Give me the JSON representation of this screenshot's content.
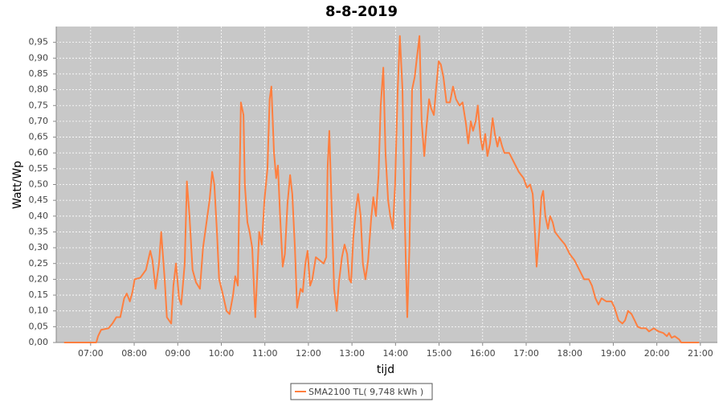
{
  "chart_data": {
    "type": "line",
    "title": "8-8-2019",
    "x_label": "tijd",
    "y_label": "Watt/Wp",
    "grid": true,
    "legend": "bottom",
    "xlim": [
      6.21,
      21.39
    ],
    "ylim": [
      0,
      1.0
    ],
    "xticks": [
      {
        "value": 7,
        "label": "07:00"
      },
      {
        "value": 8,
        "label": "08:00"
      },
      {
        "value": 9,
        "label": "09:00"
      },
      {
        "value": 10,
        "label": "10:00"
      },
      {
        "value": 11,
        "label": "11:00"
      },
      {
        "value": 12,
        "label": "12:00"
      },
      {
        "value": 13,
        "label": "13:00"
      },
      {
        "value": 14,
        "label": "14:00"
      },
      {
        "value": 15,
        "label": "15:00"
      },
      {
        "value": 16,
        "label": "16:00"
      },
      {
        "value": 17,
        "label": "17:00"
      },
      {
        "value": 18,
        "label": "18:00"
      },
      {
        "value": 19,
        "label": "19:00"
      },
      {
        "value": 20,
        "label": "20:00"
      },
      {
        "value": 21,
        "label": "21:00"
      }
    ],
    "yticks": [
      {
        "value": 0,
        "label": "0,00"
      },
      {
        "value": 0.05,
        "label": "0,05"
      },
      {
        "value": 0.1,
        "label": "0,10"
      },
      {
        "value": 0.15,
        "label": "0,15"
      },
      {
        "value": 0.2,
        "label": "0,20"
      },
      {
        "value": 0.25,
        "label": "0,25"
      },
      {
        "value": 0.3,
        "label": "0,30"
      },
      {
        "value": 0.35,
        "label": "0,35"
      },
      {
        "value": 0.4,
        "label": "0,40"
      },
      {
        "value": 0.45,
        "label": "0,45"
      },
      {
        "value": 0.5,
        "label": "0,50"
      },
      {
        "value": 0.55,
        "label": "0,55"
      },
      {
        "value": 0.6,
        "label": "0,60"
      },
      {
        "value": 0.65,
        "label": "0,65"
      },
      {
        "value": 0.7,
        "label": "0,70"
      },
      {
        "value": 0.75,
        "label": "0,75"
      },
      {
        "value": 0.8,
        "label": "0,80"
      },
      {
        "value": 0.85,
        "label": "0,85"
      },
      {
        "value": 0.9,
        "label": "0,90"
      },
      {
        "value": 0.95,
        "label": "0,95"
      }
    ],
    "x": [
      6.39,
      7.13,
      7.17,
      7.24,
      7.41,
      7.5,
      7.59,
      7.68,
      7.77,
      7.83,
      7.9,
      7.96,
      8.01,
      8.14,
      8.27,
      8.37,
      8.42,
      8.49,
      8.57,
      8.62,
      8.7,
      8.75,
      8.85,
      8.9,
      8.96,
      9.03,
      9.08,
      9.16,
      9.21,
      9.27,
      9.34,
      9.42,
      9.51,
      9.58,
      9.66,
      9.73,
      9.79,
      9.84,
      9.9,
      9.95,
      10.04,
      10.12,
      10.19,
      10.27,
      10.32,
      10.38,
      10.45,
      10.51,
      10.54,
      10.6,
      10.65,
      10.71,
      10.78,
      10.82,
      10.87,
      10.93,
      10.99,
      11.06,
      11.11,
      11.15,
      11.21,
      11.26,
      11.3,
      11.35,
      11.41,
      11.46,
      11.52,
      11.58,
      11.63,
      11.69,
      11.74,
      11.82,
      11.87,
      11.93,
      11.98,
      12.04,
      12.09,
      12.17,
      12.26,
      12.35,
      12.41,
      12.44,
      12.48,
      12.54,
      12.59,
      12.65,
      12.7,
      12.77,
      12.83,
      12.89,
      12.94,
      12.98,
      13.03,
      13.09,
      13.14,
      13.2,
      13.25,
      13.31,
      13.37,
      13.44,
      13.49,
      13.55,
      13.61,
      13.66,
      13.72,
      13.77,
      13.83,
      13.88,
      13.94,
      13.99,
      14.05,
      14.1,
      14.16,
      14.21,
      14.27,
      14.32,
      14.38,
      14.44,
      14.49,
      14.55,
      14.6,
      14.66,
      14.71,
      14.77,
      14.82,
      14.88,
      14.93,
      14.99,
      15.04,
      15.1,
      15.17,
      15.25,
      15.32,
      15.39,
      15.47,
      15.54,
      15.62,
      15.67,
      15.73,
      15.78,
      15.84,
      15.89,
      15.95,
      16.0,
      16.06,
      16.11,
      16.17,
      16.23,
      16.28,
      16.34,
      16.39,
      16.45,
      16.5,
      16.61,
      16.72,
      16.83,
      16.94,
      17.02,
      17.09,
      17.15,
      17.2,
      17.24,
      17.3,
      17.35,
      17.39,
      17.44,
      17.5,
      17.55,
      17.61,
      17.66,
      17.77,
      17.89,
      18.0,
      18.11,
      18.22,
      18.33,
      18.44,
      18.51,
      18.59,
      18.66,
      18.73,
      18.84,
      18.96,
      19.03,
      19.12,
      19.21,
      19.27,
      19.34,
      19.42,
      19.49,
      19.56,
      19.64,
      19.75,
      19.82,
      19.93,
      20.04,
      20.15,
      20.23,
      20.28,
      20.34,
      20.41,
      20.51,
      20.56,
      20.97
    ],
    "series": [
      {
        "name": "SMA2100 TL( 9,748 kWh )",
        "color": "#ff7f3f",
        "values": [
          0,
          0,
          0.02,
          0.04,
          0.045,
          0.06,
          0.08,
          0.08,
          0.14,
          0.155,
          0.13,
          0.16,
          0.2,
          0.205,
          0.23,
          0.29,
          0.26,
          0.17,
          0.25,
          0.35,
          0.2,
          0.08,
          0.06,
          0.18,
          0.25,
          0.14,
          0.12,
          0.25,
          0.51,
          0.4,
          0.23,
          0.19,
          0.17,
          0.3,
          0.38,
          0.45,
          0.54,
          0.5,
          0.35,
          0.2,
          0.15,
          0.1,
          0.09,
          0.15,
          0.21,
          0.18,
          0.76,
          0.72,
          0.5,
          0.38,
          0.35,
          0.3,
          0.08,
          0.2,
          0.35,
          0.31,
          0.45,
          0.55,
          0.77,
          0.81,
          0.6,
          0.52,
          0.56,
          0.4,
          0.24,
          0.28,
          0.44,
          0.53,
          0.47,
          0.3,
          0.11,
          0.17,
          0.16,
          0.25,
          0.29,
          0.18,
          0.2,
          0.27,
          0.26,
          0.25,
          0.27,
          0.55,
          0.67,
          0.4,
          0.17,
          0.1,
          0.19,
          0.27,
          0.31,
          0.28,
          0.2,
          0.19,
          0.33,
          0.42,
          0.47,
          0.4,
          0.25,
          0.2,
          0.26,
          0.39,
          0.46,
          0.4,
          0.53,
          0.75,
          0.87,
          0.6,
          0.45,
          0.4,
          0.36,
          0.5,
          0.8,
          0.97,
          0.8,
          0.4,
          0.08,
          0.3,
          0.8,
          0.84,
          0.9,
          0.97,
          0.7,
          0.59,
          0.68,
          0.77,
          0.74,
          0.72,
          0.8,
          0.89,
          0.88,
          0.84,
          0.76,
          0.76,
          0.81,
          0.77,
          0.75,
          0.76,
          0.69,
          0.63,
          0.7,
          0.67,
          0.7,
          0.75,
          0.65,
          0.61,
          0.66,
          0.59,
          0.63,
          0.71,
          0.66,
          0.62,
          0.65,
          0.62,
          0.6,
          0.6,
          0.57,
          0.54,
          0.52,
          0.49,
          0.5,
          0.47,
          0.35,
          0.24,
          0.35,
          0.46,
          0.48,
          0.4,
          0.36,
          0.4,
          0.38,
          0.35,
          0.33,
          0.31,
          0.28,
          0.26,
          0.23,
          0.2,
          0.2,
          0.18,
          0.14,
          0.12,
          0.14,
          0.13,
          0.13,
          0.11,
          0.07,
          0.06,
          0.07,
          0.1,
          0.09,
          0.07,
          0.05,
          0.045,
          0.045,
          0.035,
          0.045,
          0.035,
          0.03,
          0.02,
          0.03,
          0.015,
          0.02,
          0.01,
          0,
          0
        ]
      }
    ]
  }
}
